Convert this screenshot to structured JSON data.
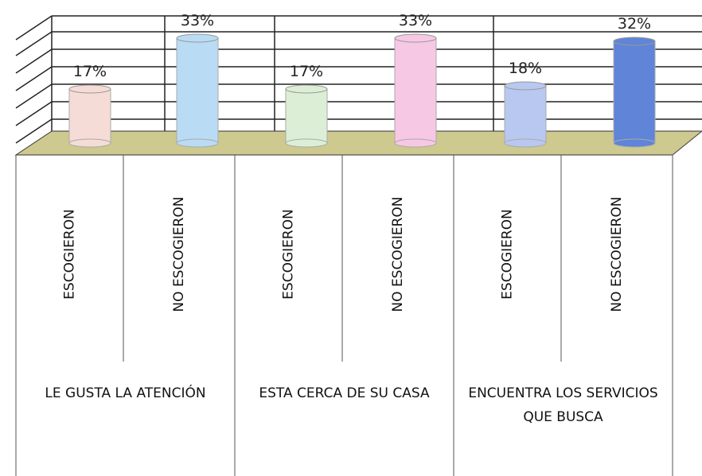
{
  "chart_data": {
    "type": "bar",
    "groups": [
      "LE GUSTA LA ATENCIÓN",
      "ESTA CERCA DE SU CASA",
      "ENCUENTRA LOS SERVICIOS QUE BUSCA"
    ],
    "categories": [
      "ESCOGIERON",
      "NO ESCOGIERON",
      "ESCOGIERON",
      "NO ESCOGIERON",
      "ESCOGIERON",
      "NO ESCOGIERON"
    ],
    "values": [
      17,
      33,
      17,
      33,
      18,
      32
    ],
    "value_labels": [
      "17%",
      "33%",
      "17%",
      "33%",
      "18%",
      "32%"
    ],
    "colors": [
      "#f6dcd6",
      "#b9dcf4",
      "#dcefd6",
      "#f6c8e4",
      "#b8c8f0",
      "#5f84d8"
    ],
    "ylim": [
      0,
      35
    ]
  }
}
